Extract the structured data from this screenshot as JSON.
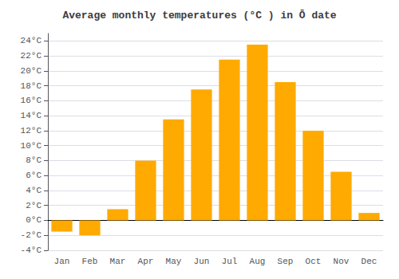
{
  "chart_data": {
    "type": "bar",
    "title": "Average monthly temperatures (°C ) in Ō date",
    "categories": [
      "Jan",
      "Feb",
      "Mar",
      "Apr",
      "May",
      "Jun",
      "Jul",
      "Aug",
      "Sep",
      "Oct",
      "Nov",
      "Dec"
    ],
    "values": [
      -1.5,
      -2.0,
      1.5,
      8.0,
      13.5,
      17.5,
      21.5,
      23.5,
      18.5,
      12.0,
      6.5,
      1.0
    ],
    "color": "#FFAA00",
    "ylim": [
      -4,
      25
    ],
    "yticks": [
      {
        "value": -4,
        "label": "-4°C"
      },
      {
        "value": -2,
        "label": "-2°C"
      },
      {
        "value": 0,
        "label": "0°C"
      },
      {
        "value": 2,
        "label": "2°C"
      },
      {
        "value": 4,
        "label": "4°C"
      },
      {
        "value": 6,
        "label": "6°C"
      },
      {
        "value": 8,
        "label": "8°C"
      },
      {
        "value": 10,
        "label": "10°C"
      },
      {
        "value": 12,
        "label": "12°C"
      },
      {
        "value": 14,
        "label": "14°C"
      },
      {
        "value": 16,
        "label": "16°C"
      },
      {
        "value": 18,
        "label": "18°C"
      },
      {
        "value": 20,
        "label": "20°C"
      },
      {
        "value": 22,
        "label": "22°C"
      },
      {
        "value": 24,
        "label": "24°C"
      }
    ],
    "grid": true
  }
}
